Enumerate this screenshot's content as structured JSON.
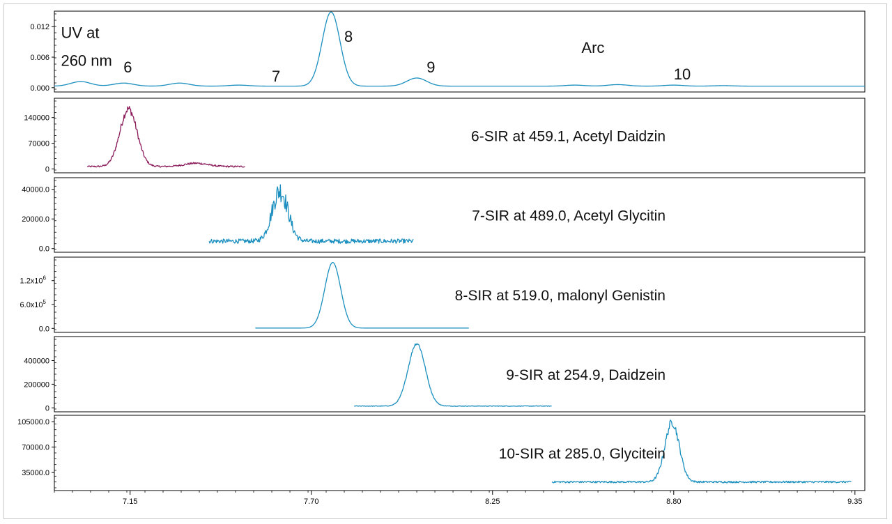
{
  "chart_data": {
    "type": "line",
    "x_axis": {
      "range": [
        6.92,
        9.38
      ],
      "ticks": [
        7.15,
        7.7,
        8.25,
        8.8,
        9.35
      ],
      "tick_labels": [
        "7.15",
        "7.70",
        "8.25",
        "8.80",
        "9.35"
      ]
    },
    "colors": {
      "uv": "#1a8fbf",
      "sir6": "#8b1a5a",
      "sir": "#1a8fbf"
    },
    "panels": [
      {
        "id": "uv",
        "title": "",
        "color_key": "uv",
        "ylim": [
          -0.0003,
          0.0145
        ],
        "yticks": [
          0.0,
          0.006,
          0.012
        ],
        "ytick_labels": [
          "0.000",
          "0.006",
          "0.012"
        ],
        "annotations": [
          {
            "text": "UV at",
            "x": 6.94,
            "y": 0.0098
          },
          {
            "text": "260 nm",
            "x": 6.94,
            "y": 0.0043
          },
          {
            "text": "6",
            "x": 7.13,
            "y": 0.003
          },
          {
            "text": "7",
            "x": 7.58,
            "y": 0.0012
          },
          {
            "text": "8",
            "x": 7.8,
            "y": 0.009
          },
          {
            "text": "9",
            "x": 8.05,
            "y": 0.003
          },
          {
            "text": "Arc",
            "x": 8.52,
            "y": 0.0068
          },
          {
            "text": "10",
            "x": 8.8,
            "y": 0.0016
          }
        ],
        "baseline": 0.0003,
        "xrange": [
          6.92,
          9.38
        ],
        "noise": 0,
        "peaks": [
          {
            "rt": 7.0,
            "height": 0.0009,
            "width": 0.03
          },
          {
            "rt": 7.13,
            "height": 0.0006,
            "width": 0.03
          },
          {
            "rt": 7.3,
            "height": 0.0006,
            "width": 0.03
          },
          {
            "rt": 7.48,
            "height": 0.0002,
            "width": 0.03
          },
          {
            "rt": 7.76,
            "height": 0.0146,
            "width": 0.027
          },
          {
            "rt": 8.02,
            "height": 0.0016,
            "width": 0.03
          },
          {
            "rt": 8.5,
            "height": 0.0002,
            "width": 0.03
          },
          {
            "rt": 8.63,
            "height": 0.0003,
            "width": 0.03
          },
          {
            "rt": 8.8,
            "height": 0.0002,
            "width": 0.03
          },
          {
            "rt": 8.95,
            "height": 0.0001,
            "width": 0.03
          }
        ]
      },
      {
        "id": "sir6",
        "title": "6-SIR at 459.1, Acetyl Daidzin",
        "color_key": "sir6",
        "ylim": [
          -3000,
          185000
        ],
        "yticks": [
          0,
          70000,
          140000
        ],
        "ytick_labels": [
          "0",
          "70000",
          "140000"
        ],
        "annotations": [],
        "baseline": 6500,
        "xrange": [
          7.02,
          7.5
        ],
        "noise": 2200,
        "peaks": [
          {
            "rt": 7.145,
            "height": 157000,
            "width": 0.026
          },
          {
            "rt": 7.35,
            "height": 9000,
            "width": 0.035
          }
        ]
      },
      {
        "id": "sir7",
        "title": "7-SIR at 489.0, Acetyl Glycitin",
        "color_key": "sir",
        "ylim": [
          -600,
          46000
        ],
        "yticks": [
          0,
          20000,
          40000
        ],
        "ytick_labels": [
          "0.0",
          "20000.0",
          "40000.0"
        ],
        "annotations": [],
        "baseline": 5000,
        "xrange": [
          7.39,
          8.01
        ],
        "noise": 1500,
        "peaks": [
          {
            "rt": 7.605,
            "height": 34000,
            "width": 0.024
          }
        ]
      },
      {
        "id": "sir8",
        "title": "8-SIR at 519.0, malonyl Genistin",
        "color_key": "sir",
        "ylim": [
          -30000,
          1720000
        ],
        "yticks": [
          0,
          600000,
          1200000
        ],
        "ytick_labels": [
          "0.0",
          "6.0x10",
          "1.2x10"
        ],
        "ytick_sups": [
          "",
          "5",
          "6"
        ],
        "annotations": [],
        "baseline": 8000,
        "xrange": [
          7.53,
          8.18
        ],
        "noise": 0,
        "peaks": [
          {
            "rt": 7.765,
            "height": 1650000,
            "width": 0.024
          }
        ]
      },
      {
        "id": "sir9",
        "title": "9-SIR at 254.9, Daidzein",
        "color_key": "sir",
        "ylim": [
          -10000,
          580000
        ],
        "yticks": [
          0,
          200000,
          400000
        ],
        "ytick_labels": [
          "0",
          "200000",
          "400000"
        ],
        "annotations": [],
        "baseline": 15000,
        "xrange": [
          7.83,
          8.43
        ],
        "noise": 2500,
        "peaks": [
          {
            "rt": 8.02,
            "height": 530000,
            "width": 0.026
          }
        ]
      },
      {
        "id": "sir10",
        "title": "10-SIR at 285.0, Glycitein",
        "color_key": "sir",
        "ylim": [
          14000,
          110000
        ],
        "yticks": [
          35000,
          70000,
          105000
        ],
        "ytick_labels": [
          "35000.0",
          "70000.0",
          "105000.0"
        ],
        "annotations": [],
        "baseline": 22000,
        "xrange": [
          8.43,
          9.34
        ],
        "noise": 1200,
        "peaks": [
          {
            "rt": 8.795,
            "height": 82000,
            "width": 0.022
          }
        ]
      }
    ]
  }
}
